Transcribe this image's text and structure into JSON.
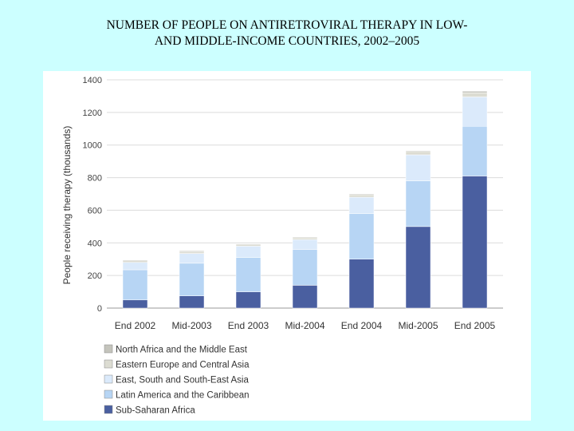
{
  "slide": {
    "title_line1": "NUMBER OF PEOPLE ON ANTIRETROVIRAL THERAPY IN LOW-",
    "title_line2": "AND MIDDLE-INCOME COUNTRIES, 2002–2005"
  },
  "chart_data": {
    "type": "bar",
    "stacked": true,
    "title": "NUMBER OF PEOPLE ON ANTIRETROVIRAL THERAPY IN LOW- AND MIDDLE-INCOME COUNTRIES, 2002–2005",
    "xlabel": "",
    "ylabel": "People receiving therapy (thousands)",
    "ylim": [
      0,
      1400
    ],
    "yticks": [
      0,
      200,
      400,
      600,
      800,
      1000,
      1200,
      1400
    ],
    "grid": true,
    "legend_position": "bottom-left",
    "categories": [
      "End 2002",
      "Mid-2003",
      "End 2003",
      "Mid-2004",
      "End 2004",
      "Mid-2005",
      "End 2005"
    ],
    "series": [
      {
        "name": "Sub-Saharan Africa",
        "color": "#4a5fa0",
        "values": [
          50,
          75,
          100,
          140,
          300,
          500,
          810
        ]
      },
      {
        "name": "Latin America and the Caribbean",
        "color": "#b7d5f4",
        "values": [
          185,
          200,
          210,
          220,
          280,
          280,
          305
        ]
      },
      {
        "name": "East, South and South-East Asia",
        "color": "#dbeafb",
        "values": [
          45,
          60,
          70,
          60,
          100,
          160,
          180
        ]
      },
      {
        "name": "Eastern Europe and Central Asia",
        "color": "#dcdcd2",
        "values": [
          10,
          12,
          8,
          10,
          15,
          20,
          25
        ]
      },
      {
        "name": "North Africa and the Middle East",
        "color": "#c4c4bc",
        "values": [
          5,
          5,
          5,
          5,
          5,
          5,
          10
        ]
      }
    ],
    "legend_order": [
      "North Africa and the Middle East",
      "Eastern Europe and Central Asia",
      "East, South and South-East Asia",
      "Latin America and the Caribbean",
      "Sub-Saharan Africa"
    ]
  }
}
